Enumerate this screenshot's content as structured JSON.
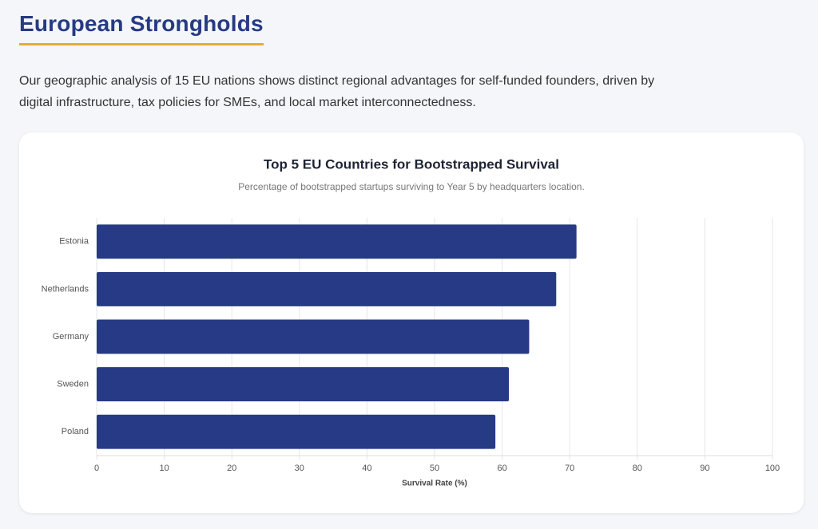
{
  "header": {
    "title": "European Strongholds",
    "description": "Our geographic analysis of 15 EU nations shows distinct regional advantages for self-funded founders, driven by digital infrastructure, tax policies for SMEs, and local market interconnectedness."
  },
  "chart_data": {
    "type": "hbar",
    "title": "Top 5 EU Countries for Bootstrapped Survival",
    "subtitle": "Percentage of bootstrapped startups surviving to Year 5 by headquarters location.",
    "categories": [
      "Estonia",
      "Netherlands",
      "Germany",
      "Sweden",
      "Poland"
    ],
    "values": [
      71,
      68,
      64,
      61,
      59
    ],
    "color": "#263a85",
    "xlabel": "Survival Rate (%)",
    "xlim": [
      0,
      100
    ],
    "xticks": [
      0,
      10,
      20,
      30,
      40,
      50,
      60,
      70,
      80,
      90,
      100
    ],
    "grid": true
  }
}
